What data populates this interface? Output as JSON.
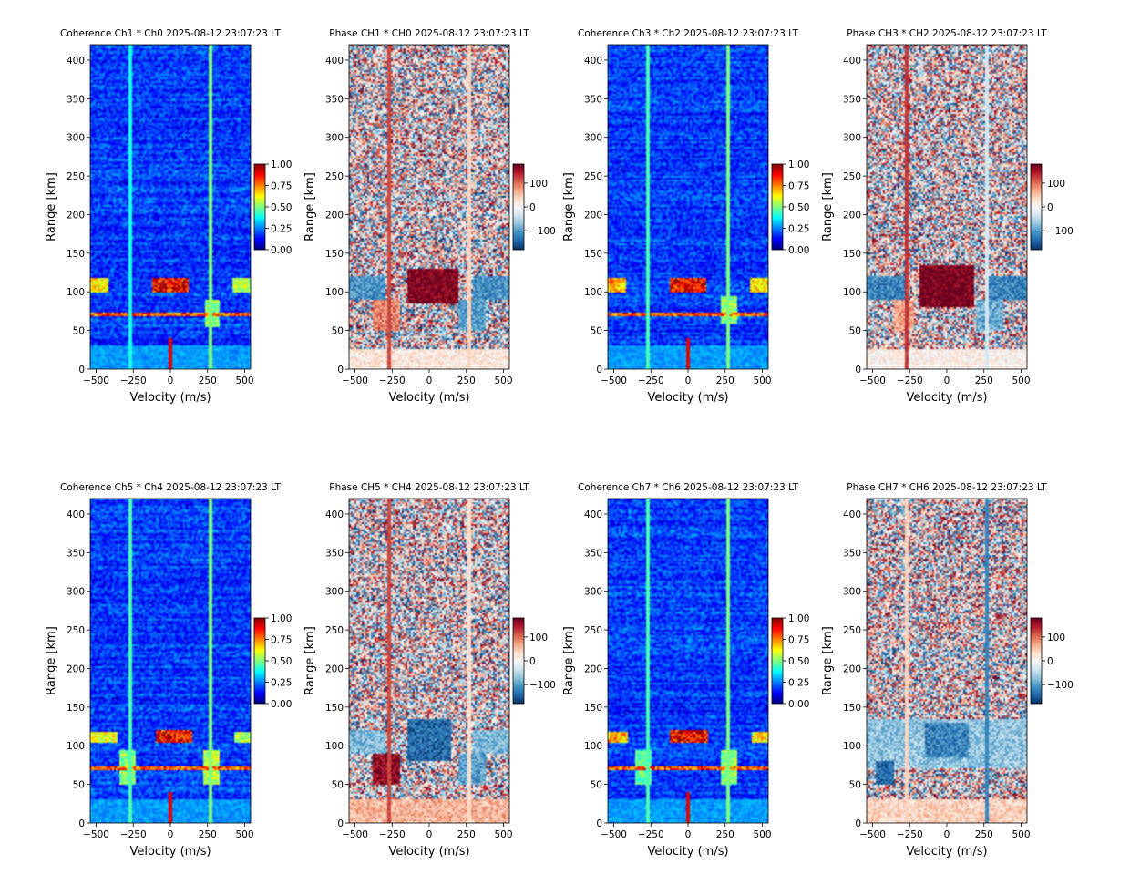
{
  "colors": {
    "jet": [
      "#00007f",
      "#0000ff",
      "#007fff",
      "#00ffff",
      "#7fff7f",
      "#ffff00",
      "#ff7f00",
      "#ff0000",
      "#7f0000"
    ],
    "rdbu": [
      "#053061",
      "#2166ac",
      "#4393c3",
      "#92c5de",
      "#d1e5f0",
      "#f7f7f7",
      "#fddbc7",
      "#f4a582",
      "#d6604d",
      "#b2182b",
      "#67001f"
    ]
  },
  "chart_data": [
    {
      "type": "heatmap",
      "kind": "coherence",
      "title": "Coherence Ch1 * Ch0 2025-08-12 23:07:23 LT",
      "xlabel": "Velocity (m/s)",
      "ylabel": "Range [km]",
      "xlim": [
        -540,
        540
      ],
      "ylim": [
        0,
        420
      ],
      "xticks": [
        "-500",
        "-250",
        "0",
        "250",
        "500"
      ],
      "yticks": [
        "0",
        "50",
        "100",
        "150",
        "200",
        "250",
        "300",
        "350",
        "400"
      ],
      "colorbar": {
        "range": [
          0,
          1
        ],
        "ticks": [
          "0.00",
          "0.25",
          "0.50",
          "0.75",
          "1.00"
        ]
      },
      "features": [
        {
          "range_km": [
            98,
            118
          ],
          "velocity": [
            -120,
            120
          ],
          "value": 0.95
        },
        {
          "range_km": [
            98,
            118
          ],
          "velocity": [
            -540,
            -420
          ],
          "value": 0.7
        },
        {
          "range_km": [
            98,
            118
          ],
          "velocity": [
            420,
            540
          ],
          "value": 0.6
        },
        {
          "range_km": [
            55,
            90
          ],
          "velocity": [
            230,
            330
          ],
          "value": 0.55
        },
        {
          "range_km": [
            69,
            72
          ],
          "velocity": [
            -540,
            540
          ],
          "value": 0.85
        },
        {
          "range_km": [
            0,
            30
          ],
          "velocity": [
            -540,
            540
          ],
          "value": 0.3
        }
      ],
      "vertical_lines": [
        {
          "velocity": -270,
          "value": 0.4
        },
        {
          "velocity": 270,
          "value": 0.5
        }
      ]
    },
    {
      "type": "heatmap",
      "kind": "phase",
      "title": "Phase CH1 * CH0 2025-08-12 23:07:23 LT",
      "xlabel": "Velocity (m/s)",
      "ylabel": "Range [km]",
      "xlim": [
        -540,
        540
      ],
      "ylim": [
        0,
        420
      ],
      "xticks": [
        "-500",
        "-250",
        "0",
        "250",
        "500"
      ],
      "yticks": [
        "0",
        "50",
        "100",
        "150",
        "200",
        "250",
        "300",
        "350",
        "400"
      ],
      "colorbar": {
        "range": [
          -180,
          180
        ],
        "ticks": [
          "−100",
          "0",
          "100"
        ]
      },
      "features": [
        {
          "range_km": [
            85,
            130
          ],
          "velocity": [
            -150,
            200
          ],
          "value": 170
        },
        {
          "range_km": [
            90,
            120
          ],
          "velocity": [
            -540,
            -300
          ],
          "value": -110
        },
        {
          "range_km": [
            90,
            120
          ],
          "velocity": [
            300,
            540
          ],
          "value": -110
        },
        {
          "range_km": [
            50,
            90
          ],
          "velocity": [
            -380,
            -200
          ],
          "value": 90
        },
        {
          "range_km": [
            50,
            90
          ],
          "velocity": [
            200,
            380
          ],
          "value": -100
        },
        {
          "range_km": [
            0,
            25
          ],
          "velocity": [
            -540,
            540
          ],
          "value": 20
        }
      ],
      "vertical_lines": [
        {
          "velocity": -270,
          "value": 120
        },
        {
          "velocity": 270,
          "value": 40
        }
      ]
    },
    {
      "type": "heatmap",
      "kind": "coherence",
      "title": "Coherence Ch3 * Ch2 2025-08-12 23:07:23 LT",
      "xlabel": "Velocity (m/s)",
      "ylabel": "Range [km]",
      "xlim": [
        -540,
        540
      ],
      "ylim": [
        0,
        420
      ],
      "xticks": [
        "-500",
        "-250",
        "0",
        "250",
        "500"
      ],
      "yticks": [
        "0",
        "50",
        "100",
        "150",
        "200",
        "250",
        "300",
        "350",
        "400"
      ],
      "colorbar": {
        "range": [
          0,
          1
        ],
        "ticks": [
          "0.00",
          "0.25",
          "0.50",
          "0.75",
          "1.00"
        ]
      },
      "features": [
        {
          "range_km": [
            98,
            118
          ],
          "velocity": [
            -120,
            120
          ],
          "value": 0.95
        },
        {
          "range_km": [
            98,
            118
          ],
          "velocity": [
            -540,
            -420
          ],
          "value": 0.75
        },
        {
          "range_km": [
            98,
            118
          ],
          "velocity": [
            420,
            540
          ],
          "value": 0.7
        },
        {
          "range_km": [
            60,
            95
          ],
          "velocity": [
            220,
            330
          ],
          "value": 0.55
        },
        {
          "range_km": [
            69,
            72
          ],
          "velocity": [
            -540,
            540
          ],
          "value": 0.85
        },
        {
          "range_km": [
            0,
            30
          ],
          "velocity": [
            -540,
            540
          ],
          "value": 0.3
        }
      ],
      "vertical_lines": [
        {
          "velocity": -270,
          "value": 0.45
        },
        {
          "velocity": 270,
          "value": 0.5
        }
      ]
    },
    {
      "type": "heatmap",
      "kind": "phase",
      "title": "Phase CH3 * CH2 2025-08-12 23:07:23 LT",
      "xlabel": "Velocity (m/s)",
      "ylabel": "Range [km]",
      "xlim": [
        -540,
        540
      ],
      "ylim": [
        0,
        420
      ],
      "xticks": [
        "-500",
        "-250",
        "0",
        "250",
        "500"
      ],
      "yticks": [
        "0",
        "50",
        "100",
        "150",
        "200",
        "250",
        "300",
        "350",
        "400"
      ],
      "colorbar": {
        "range": [
          -180,
          180
        ],
        "ticks": [
          "−100",
          "0",
          "100"
        ]
      },
      "features": [
        {
          "range_km": [
            80,
            135
          ],
          "velocity": [
            -180,
            180
          ],
          "value": 175
        },
        {
          "range_km": [
            90,
            120
          ],
          "velocity": [
            -540,
            -280
          ],
          "value": -120
        },
        {
          "range_km": [
            90,
            120
          ],
          "velocity": [
            280,
            540
          ],
          "value": -120
        },
        {
          "range_km": [
            50,
            90
          ],
          "velocity": [
            -360,
            -220
          ],
          "value": 70
        },
        {
          "range_km": [
            50,
            90
          ],
          "velocity": [
            200,
            380
          ],
          "value": -90
        },
        {
          "range_km": [
            0,
            25
          ],
          "velocity": [
            -540,
            540
          ],
          "value": 10
        }
      ],
      "vertical_lines": [
        {
          "velocity": -270,
          "value": 130
        },
        {
          "velocity": 270,
          "value": -30
        }
      ]
    },
    {
      "type": "heatmap",
      "kind": "coherence",
      "title": "Coherence Ch5 * Ch4 2025-08-12 23:07:23 LT",
      "xlabel": "Velocity (m/s)",
      "ylabel": "Range [km]",
      "xlim": [
        -540,
        540
      ],
      "ylim": [
        0,
        420
      ],
      "xticks": [
        "-500",
        "-250",
        "0",
        "250",
        "500"
      ],
      "yticks": [
        "0",
        "50",
        "100",
        "150",
        "200",
        "250",
        "300",
        "350",
        "400"
      ],
      "colorbar": {
        "range": [
          0,
          1
        ],
        "ticks": [
          "0.00",
          "0.25",
          "0.50",
          "0.75",
          "1.00"
        ]
      },
      "features": [
        {
          "range_km": [
            105,
            120
          ],
          "velocity": [
            -100,
            150
          ],
          "value": 0.95
        },
        {
          "range_km": [
            105,
            118
          ],
          "velocity": [
            -540,
            -350
          ],
          "value": 0.65
        },
        {
          "range_km": [
            105,
            118
          ],
          "velocity": [
            430,
            540
          ],
          "value": 0.6
        },
        {
          "range_km": [
            50,
            95
          ],
          "velocity": [
            -340,
            -230
          ],
          "value": 0.55
        },
        {
          "range_km": [
            50,
            95
          ],
          "velocity": [
            220,
            330
          ],
          "value": 0.6
        },
        {
          "range_km": [
            69,
            72
          ],
          "velocity": [
            -540,
            540
          ],
          "value": 0.85
        },
        {
          "range_km": [
            0,
            30
          ],
          "velocity": [
            -540,
            540
          ],
          "value": 0.3
        }
      ],
      "vertical_lines": [
        {
          "velocity": -270,
          "value": 0.45
        },
        {
          "velocity": 270,
          "value": 0.5
        }
      ]
    },
    {
      "type": "heatmap",
      "kind": "phase",
      "title": "Phase CH5 * CH4 2025-08-12 23:07:23 LT",
      "xlabel": "Velocity (m/s)",
      "ylabel": "Range [km]",
      "xlim": [
        -540,
        540
      ],
      "ylim": [
        0,
        420
      ],
      "xticks": [
        "-500",
        "-250",
        "0",
        "250",
        "500"
      ],
      "yticks": [
        "0",
        "50",
        "100",
        "150",
        "200",
        "250",
        "300",
        "350",
        "400"
      ],
      "colorbar": {
        "range": [
          -180,
          180
        ],
        "ticks": [
          "−100",
          "0",
          "100"
        ]
      },
      "features": [
        {
          "range_km": [
            80,
            135
          ],
          "velocity": [
            -150,
            150
          ],
          "value": -140
        },
        {
          "range_km": [
            90,
            120
          ],
          "velocity": [
            -540,
            -300
          ],
          "value": -80
        },
        {
          "range_km": [
            90,
            120
          ],
          "velocity": [
            300,
            540
          ],
          "value": -80
        },
        {
          "range_km": [
            50,
            90
          ],
          "velocity": [
            -380,
            -200
          ],
          "value": 160
        },
        {
          "range_km": [
            50,
            90
          ],
          "velocity": [
            200,
            380
          ],
          "value": -100
        },
        {
          "range_km": [
            0,
            30
          ],
          "velocity": [
            -540,
            540
          ],
          "value": 60
        }
      ],
      "vertical_lines": [
        {
          "velocity": -270,
          "value": 120
        },
        {
          "velocity": 270,
          "value": 30
        }
      ]
    },
    {
      "type": "heatmap",
      "kind": "coherence",
      "title": "Coherence Ch7 * Ch6 2025-08-12 23:07:23 LT",
      "xlabel": "Velocity (m/s)",
      "ylabel": "Range [km]",
      "xlim": [
        -540,
        540
      ],
      "ylim": [
        0,
        420
      ],
      "xticks": [
        "-500",
        "-250",
        "0",
        "250",
        "500"
      ],
      "yticks": [
        "0",
        "50",
        "100",
        "150",
        "200",
        "250",
        "300",
        "350",
        "400"
      ],
      "colorbar": {
        "range": [
          0,
          1
        ],
        "ticks": [
          "0.00",
          "0.25",
          "0.50",
          "0.75",
          "1.00"
        ]
      },
      "features": [
        {
          "range_km": [
            105,
            120
          ],
          "velocity": [
            -120,
            130
          ],
          "value": 0.95
        },
        {
          "range_km": [
            105,
            118
          ],
          "velocity": [
            -540,
            -400
          ],
          "value": 0.75
        },
        {
          "range_km": [
            105,
            118
          ],
          "velocity": [
            430,
            540
          ],
          "value": 0.7
        },
        {
          "range_km": [
            50,
            95
          ],
          "velocity": [
            -360,
            -240
          ],
          "value": 0.5
        },
        {
          "range_km": [
            50,
            95
          ],
          "velocity": [
            220,
            330
          ],
          "value": 0.55
        },
        {
          "range_km": [
            69,
            72
          ],
          "velocity": [
            -540,
            540
          ],
          "value": 0.85
        },
        {
          "range_km": [
            0,
            30
          ],
          "velocity": [
            -540,
            540
          ],
          "value": 0.3
        }
      ],
      "vertical_lines": [
        {
          "velocity": -270,
          "value": 0.45
        },
        {
          "velocity": 270,
          "value": 0.5
        }
      ]
    },
    {
      "type": "heatmap",
      "kind": "phase",
      "title": "Phase CH7 * CH6 2025-08-12 23:07:23 LT",
      "xlabel": "Velocity (m/s)",
      "ylabel": "Range [km]",
      "xlim": [
        -540,
        540
      ],
      "ylim": [
        0,
        420
      ],
      "xticks": [
        "-500",
        "-250",
        "0",
        "250",
        "500"
      ],
      "yticks": [
        "0",
        "50",
        "100",
        "150",
        "200",
        "250",
        "300",
        "350",
        "400"
      ],
      "colorbar": {
        "range": [
          -180,
          180
        ],
        "ticks": [
          "−100",
          "0",
          "100"
        ]
      },
      "features": [
        {
          "range_km": [
            70,
            135
          ],
          "velocity": [
            -540,
            540
          ],
          "value": -70
        },
        {
          "range_km": [
            85,
            130
          ],
          "velocity": [
            -150,
            150
          ],
          "value": -120
        },
        {
          "range_km": [
            50,
            80
          ],
          "velocity": [
            -480,
            -350
          ],
          "value": -140
        },
        {
          "range_km": [
            0,
            30
          ],
          "velocity": [
            -540,
            540
          ],
          "value": 40
        }
      ],
      "vertical_lines": [
        {
          "velocity": -270,
          "value": 40
        },
        {
          "velocity": 270,
          "value": -120
        }
      ]
    }
  ]
}
